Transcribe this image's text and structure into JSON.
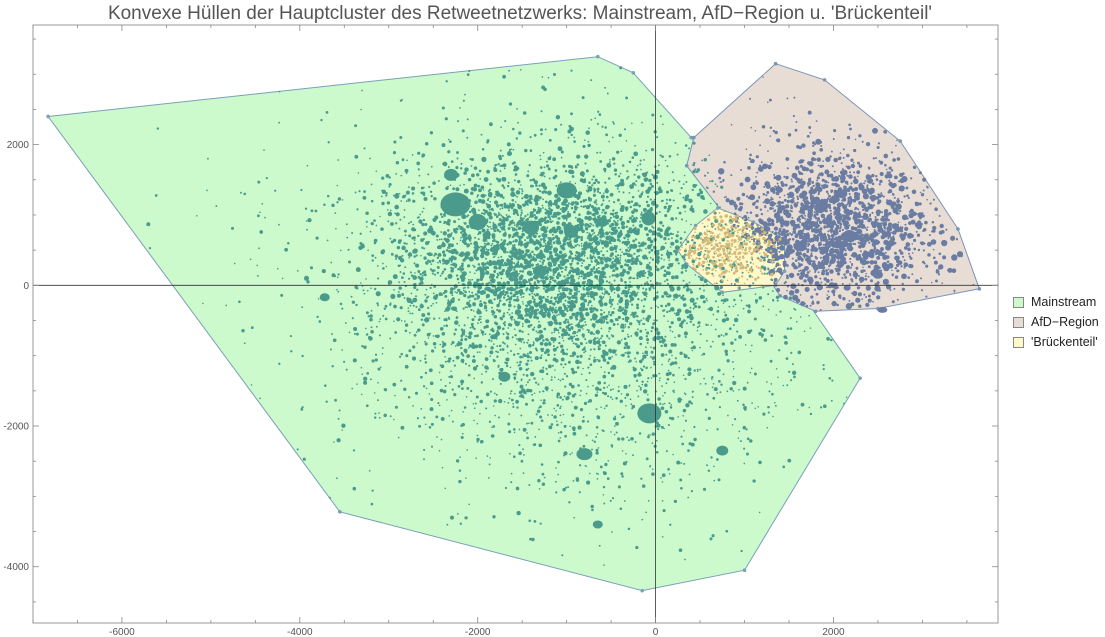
{
  "chart_data": {
    "type": "scatter",
    "title": "Konvexe Hüllen der Hauptcluster des Retweetnetzwerks: Mainstream, AfD−Region u. 'Brückenteil'",
    "xlabel": "",
    "ylabel": "",
    "xlim": [
      -7000,
      3850
    ],
    "ylim": [
      -4800,
      3700
    ],
    "x_ticks": [
      -6000,
      -4000,
      -2000,
      0,
      2000
    ],
    "y_ticks": [
      -4000,
      -2000,
      0,
      2000
    ],
    "x_tick_labels": [
      "-6000",
      "-4000",
      "-2000",
      "0",
      "2000"
    ],
    "y_tick_labels": [
      "-4000",
      "-2000",
      "0",
      "2000"
    ],
    "legend_position": "right",
    "series": [
      {
        "name": "Mainstream",
        "fill": "#ccfacc",
        "stroke": "#7aa0b8",
        "point_color": "#4a9b8c",
        "hull": [
          [
            -6830,
            2400
          ],
          [
            -650,
            3250
          ],
          [
            -250,
            3020
          ],
          [
            400,
            2100
          ],
          [
            900,
            1300
          ],
          [
            1300,
            500
          ],
          [
            2300,
            -1320
          ],
          [
            1000,
            -4050
          ],
          [
            -150,
            -4340
          ],
          [
            -3550,
            -3220
          ]
        ],
        "clusters": [
          {
            "center": [
              -1200,
              400
            ],
            "sx": 900,
            "sy": 700,
            "n": 2600,
            "r": [
              0.9,
              2.6
            ]
          },
          {
            "center": [
              -900,
              -300
            ],
            "sx": 1200,
            "sy": 1100,
            "n": 1400,
            "r": [
              0.8,
              2.2
            ]
          },
          {
            "center": [
              -1000,
              0
            ],
            "sx": 1900,
            "sy": 1700,
            "n": 900,
            "r": [
              0.8,
              2.0
            ]
          },
          {
            "center": [
              -700,
              -1800
            ],
            "sx": 800,
            "sy": 700,
            "n": 250,
            "r": [
              0.8,
              2.0
            ]
          }
        ],
        "big_points": [
          [
            -2250,
            1150,
            15,
            12
          ],
          [
            -1000,
            1350,
            10,
            8
          ],
          [
            -2000,
            900,
            9,
            8
          ],
          [
            -1400,
            820,
            8,
            7
          ],
          [
            -2300,
            1570,
            7,
            6
          ],
          [
            -950,
            760,
            7,
            6
          ],
          [
            -80,
            950,
            7,
            7
          ],
          [
            -70,
            -1820,
            12,
            10
          ],
          [
            -800,
            -2400,
            8,
            6
          ],
          [
            -1700,
            -1300,
            6,
            5
          ],
          [
            750,
            -2350,
            6,
            5
          ],
          [
            -650,
            -3400,
            5,
            4
          ],
          [
            -3720,
            -170,
            5,
            4
          ],
          [
            -1300,
            200,
            7,
            6
          ],
          [
            -600,
            900,
            6,
            5
          ]
        ]
      },
      {
        "name": "AfD−Region",
        "fill": "#e8ddd4",
        "stroke": "#7a94b8",
        "point_color": "#6a7ca2",
        "hull": [
          [
            1350,
            3150
          ],
          [
            1900,
            2920
          ],
          [
            2750,
            2050
          ],
          [
            3400,
            800
          ],
          [
            3640,
            -50
          ],
          [
            2500,
            -330
          ],
          [
            1800,
            -370
          ],
          [
            1400,
            -150
          ],
          [
            900,
            800
          ],
          [
            350,
            1700
          ],
          [
            430,
            2100
          ]
        ],
        "clusters": [
          {
            "center": [
              2000,
              800
            ],
            "sx": 550,
            "sy": 500,
            "n": 1400,
            "r": [
              1.0,
              3.2
            ]
          },
          {
            "center": [
              1800,
              900
            ],
            "sx": 800,
            "sy": 800,
            "n": 380,
            "r": [
              0.8,
              2.2
            ]
          }
        ],
        "big_points": [
          [
            2180,
            700,
            7,
            6
          ],
          [
            1850,
            1100,
            6,
            5
          ],
          [
            2500,
            150,
            5,
            4
          ],
          [
            2550,
            -350,
            5,
            3
          ],
          [
            1630,
            550,
            6,
            5
          ],
          [
            2100,
            1300,
            5,
            4
          ]
        ]
      },
      {
        "name": "'Brückenteil'",
        "fill": "#fef9c8",
        "stroke": "#7aa0b8",
        "point_color": "#d4b87a",
        "hull": [
          [
            700,
            1100
          ],
          [
            1100,
            900
          ],
          [
            1450,
            650
          ],
          [
            1450,
            200
          ],
          [
            1350,
            0
          ],
          [
            750,
            -100
          ],
          [
            350,
            300
          ],
          [
            250,
            500
          ],
          [
            450,
            850
          ]
        ],
        "clusters": [
          {
            "center": [
              800,
              550
            ],
            "sx": 300,
            "sy": 280,
            "n": 420,
            "r": [
              0.8,
              1.8
            ]
          }
        ],
        "big_points": []
      }
    ]
  }
}
